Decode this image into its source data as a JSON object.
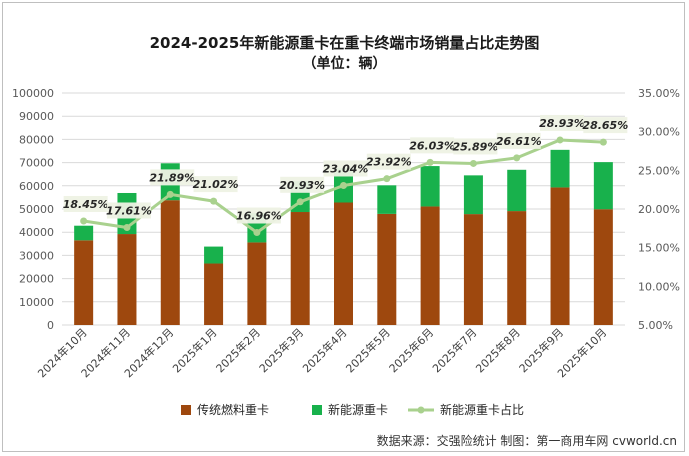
{
  "chart_data": {
    "type": "bar",
    "title": "2024-2025年新能源重卡在重卡终端市场销量占比走势图",
    "subtitle": "（单位：辆）",
    "categories": [
      "2024年10月",
      "2024年11月",
      "2024年12月",
      "2025年1月",
      "2025年2月",
      "2025年3月",
      "2025年4月",
      "2025年5月",
      "2025年6月",
      "2025年7月",
      "2025年8月",
      "2025年9月",
      "2025年10月"
    ],
    "series": [
      {
        "name": "传统燃料重卡",
        "kind": "stacked-bar",
        "color": "#9e480e",
        "values": [
          36500,
          39200,
          53800,
          26500,
          35600,
          48700,
          52800,
          47900,
          51100,
          47800,
          49100,
          59300,
          49900
        ]
      },
      {
        "name": "新能源重卡",
        "kind": "stacked-bar",
        "color": "#18b14c",
        "values": [
          6300,
          17700,
          15900,
          7300,
          12600,
          13300,
          14800,
          12300,
          17400,
          16700,
          17800,
          16200,
          20300
        ]
      },
      {
        "name": "新能源重卡占比",
        "kind": "line",
        "color": "#a9d18e",
        "axis": "right",
        "values": [
          18.45,
          17.61,
          21.89,
          21.02,
          16.96,
          20.93,
          23.04,
          23.92,
          26.03,
          25.89,
          26.61,
          28.93,
          28.65
        ]
      }
    ],
    "line_labels": [
      "18.45%",
      "17.61%",
      "21.89%",
      "21.02%",
      "16.96%",
      "20.93%",
      "23.04%",
      "23.92%",
      "26.03%",
      "25.89%",
      "26.61%",
      "28.93%",
      "28.65%"
    ],
    "y_left": {
      "ylim": [
        0,
        100000
      ],
      "ticks": [
        "0",
        "10000",
        "20000",
        "30000",
        "40000",
        "50000",
        "60000",
        "70000",
        "80000",
        "90000",
        "100000"
      ]
    },
    "y_right": {
      "ylim": [
        5,
        35
      ],
      "ticks": [
        "5.00%",
        "10.00%",
        "15.00%",
        "20.00%",
        "25.00%",
        "30.00%",
        "35.00%"
      ]
    },
    "grid": true,
    "legend_position": "bottom"
  },
  "source_text": "数据来源：交强险统计  制图：第一商用车网 cvworld.cn"
}
